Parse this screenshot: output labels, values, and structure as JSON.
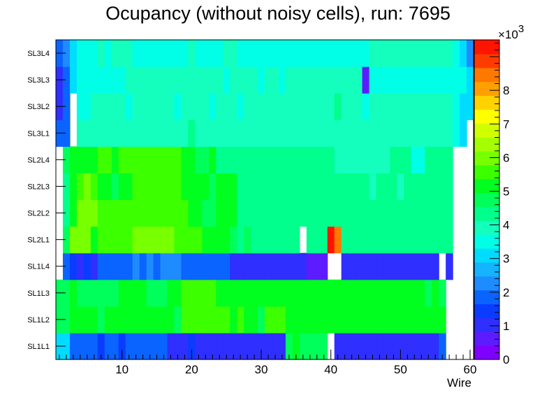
{
  "chart_data": {
    "type": "heatmap",
    "title": "Ocupancy (without noisy cells), run: 7695",
    "xlabel": "Wire",
    "ylabel": "",
    "x_range": [
      0.5,
      60.5
    ],
    "x_ticks": [
      10,
      20,
      30,
      40,
      50,
      60
    ],
    "layers": [
      "SL1L1",
      "SL1L2",
      "SL1L3",
      "SL1L4",
      "SL2L1",
      "SL2L2",
      "SL2L3",
      "SL2L4",
      "SL3L1",
      "SL3L2",
      "SL3L3",
      "SL3L4"
    ],
    "z_range": [
      0,
      9.5
    ],
    "z_multiplier_base": "×10",
    "z_multiplier_exp": "3",
    "z_ticks": [
      "0",
      "1",
      "2",
      "3",
      "4",
      "5",
      "6",
      "7",
      "8"
    ],
    "palette": [
      "#7f00ff",
      "#5c1cff",
      "#2f2fff",
      "#0a3cff",
      "#0a64ff",
      "#1e8cff",
      "#14b4ff",
      "#00dcff",
      "#00ffe6",
      "#14ffbe",
      "#00ff8c",
      "#00ff5a",
      "#00ff1e",
      "#3cff00",
      "#78ff00",
      "#a5ff00",
      "#d2ff00",
      "#ffff00",
      "#ffd200",
      "#ffa000",
      "#ff7800",
      "#ff3c00",
      "#ff1400"
    ],
    "values": [
      [
        2.9,
        2.9,
        1.9,
        1.7,
        1.7,
        1.9,
        1.3,
        1.7,
        1.9,
        1.6,
        1.7,
        1.7,
        1.7,
        1.7,
        1.7,
        1.7,
        1.1,
        1.1,
        1.1,
        1.3,
        1.1,
        1.1,
        1.1,
        1.1,
        1.1,
        0.9,
        1.1,
        1.1,
        1.1,
        1.1,
        0.9,
        0.9,
        0.9,
        4.9,
        5.2,
        4.9,
        4.9,
        4.9,
        4.9,
        null,
        0.9,
        0.9,
        0.9,
        0.9,
        0.9,
        0.9,
        0.9,
        0.9,
        0.9,
        0.9,
        0.9,
        0.9,
        0.9,
        0.9,
        0.9,
        1.7,
        null,
        null,
        null,
        null
      ],
      [
        4.9,
        4.9,
        5.3,
        5.3,
        5.3,
        5.3,
        4.9,
        5.3,
        5.3,
        5.3,
        5.3,
        5.3,
        5.3,
        5.3,
        5.3,
        5.3,
        5.3,
        4.9,
        5.6,
        5.6,
        5.6,
        5.6,
        5.6,
        5.6,
        5.6,
        5.3,
        5.6,
        5.3,
        5.3,
        4.9,
        5.6,
        5.6,
        5.6,
        5.3,
        5.3,
        5.3,
        5.3,
        5.3,
        5.3,
        5.3,
        5.3,
        5.3,
        5.3,
        5.3,
        5.3,
        5.3,
        5.3,
        5.3,
        5.3,
        5.3,
        5.3,
        5.3,
        5.3,
        5.3,
        5.3,
        5.3,
        null,
        null,
        null,
        null
      ],
      [
        4.9,
        4.9,
        5.3,
        4.9,
        4.9,
        4.9,
        4.9,
        4.9,
        4.9,
        5.3,
        5.3,
        5.3,
        5.3,
        4.9,
        4.9,
        4.9,
        5.3,
        5.3,
        5.6,
        5.6,
        5.6,
        5.6,
        5.6,
        5.3,
        5.3,
        5.3,
        5.3,
        5.3,
        5.3,
        5.3,
        5.3,
        5.3,
        5.3,
        5.3,
        5.3,
        5.3,
        5.3,
        5.3,
        5.3,
        5.3,
        5.3,
        5.3,
        5.3,
        5.3,
        5.3,
        5.3,
        5.3,
        5.3,
        5.3,
        5.3,
        5.3,
        5.3,
        5.3,
        4.9,
        5.3,
        4.9,
        null,
        null,
        null,
        null
      ],
      [
        null,
        1.7,
        1.3,
        0.9,
        1.3,
        0.9,
        1.7,
        1.7,
        1.7,
        1.7,
        1.7,
        2.4,
        1.9,
        2.4,
        1.9,
        2.1,
        2.1,
        2.1,
        1.7,
        1.7,
        1.7,
        1.7,
        1.7,
        1.7,
        1.7,
        1.1,
        1.1,
        1.1,
        1.1,
        1.1,
        1.1,
        1.1,
        1.1,
        0.9,
        1.1,
        1.1,
        0.5,
        0.5,
        0.5,
        null,
        null,
        0.9,
        0.9,
        0.9,
        0.9,
        0.9,
        0.9,
        0.9,
        0.9,
        0.9,
        0.9,
        0.9,
        0.9,
        0.9,
        0.9,
        null,
        0.9,
        null,
        null,
        null
      ],
      [
        null,
        4.9,
        5.9,
        5.9,
        5.9,
        5.3,
        5.6,
        5.6,
        5.6,
        5.6,
        5.6,
        5.9,
        5.9,
        5.9,
        5.9,
        5.9,
        5.9,
        5.6,
        5.6,
        5.6,
        5.6,
        5.3,
        5.3,
        5.3,
        5.3,
        4.9,
        4.5,
        4.9,
        4.5,
        4.5,
        4.2,
        4.2,
        4.5,
        4.2,
        4.2,
        null,
        4.2,
        4.2,
        4.2,
        9.2,
        8.4,
        4.5,
        4.5,
        4.5,
        4.2,
        4.2,
        4.2,
        4.2,
        4.2,
        4.2,
        4.2,
        4.2,
        4.2,
        4.2,
        4.2,
        4.2,
        4.2,
        null,
        null,
        null
      ],
      [
        null,
        4.5,
        5.3,
        5.9,
        5.9,
        5.9,
        5.6,
        5.6,
        5.6,
        5.6,
        5.6,
        5.6,
        5.6,
        5.6,
        5.6,
        5.6,
        5.6,
        5.6,
        5.6,
        5.3,
        5.3,
        4.9,
        4.9,
        5.3,
        5.3,
        5.3,
        4.5,
        4.5,
        4.5,
        4.5,
        4.5,
        4.5,
        4.2,
        4.5,
        4.5,
        4.5,
        4.5,
        4.5,
        4.5,
        4.5,
        4.2,
        4.2,
        4.2,
        4.2,
        4.2,
        4.2,
        4.2,
        4.2,
        4.2,
        4.2,
        4.2,
        4.2,
        4.2,
        4.2,
        4.5,
        4.2,
        4.5,
        null,
        null,
        null
      ],
      [
        null,
        4.5,
        5.3,
        5.6,
        5.9,
        5.6,
        5.3,
        5.3,
        4.9,
        5.3,
        5.3,
        5.6,
        5.6,
        5.6,
        5.6,
        5.6,
        5.6,
        5.6,
        5.3,
        5.3,
        5.3,
        5.3,
        4.9,
        5.3,
        5.3,
        5.3,
        4.5,
        4.5,
        4.5,
        4.5,
        4.5,
        4.5,
        4.5,
        4.5,
        4.5,
        4.5,
        4.5,
        4.5,
        4.5,
        4.5,
        4.2,
        4.2,
        4.2,
        4.2,
        4.5,
        3.9,
        4.2,
        4.5,
        4.5,
        3.9,
        4.2,
        4.2,
        4.5,
        4.2,
        4.5,
        4.5,
        4.5,
        null,
        null,
        null
      ],
      [
        null,
        4.9,
        5.3,
        5.3,
        5.3,
        5.3,
        5.6,
        5.6,
        5.3,
        5.6,
        5.6,
        5.6,
        5.6,
        5.6,
        5.6,
        5.6,
        5.6,
        5.6,
        5.3,
        5.3,
        4.9,
        4.9,
        5.3,
        4.5,
        4.2,
        4.5,
        4.2,
        4.2,
        4.2,
        4.2,
        4.2,
        4.2,
        4.2,
        4.2,
        4.2,
        4.2,
        4.2,
        4.5,
        4.2,
        4.2,
        3.9,
        3.9,
        3.9,
        3.9,
        3.9,
        3.9,
        3.9,
        3.9,
        4.2,
        4.2,
        4.2,
        3.6,
        3.6,
        4.2,
        4.2,
        4.2,
        4.5,
        null,
        null,
        null
      ],
      [
        1.7,
        1.9,
        null,
        3.9,
        3.9,
        3.9,
        3.9,
        3.9,
        3.9,
        3.9,
        3.9,
        3.9,
        3.9,
        3.9,
        3.9,
        3.9,
        3.9,
        3.9,
        3.9,
        4.2,
        3.9,
        3.9,
        3.9,
        3.9,
        3.9,
        3.9,
        3.9,
        3.9,
        3.9,
        3.9,
        3.9,
        3.9,
        3.9,
        3.9,
        3.9,
        3.9,
        3.9,
        3.9,
        3.9,
        3.9,
        3.9,
        3.9,
        3.9,
        3.9,
        3.9,
        3.9,
        3.9,
        3.9,
        3.9,
        3.9,
        3.9,
        3.9,
        3.9,
        3.9,
        3.9,
        3.9,
        3.9,
        3.6,
        2.9,
        null
      ],
      [
        1.1,
        1.7,
        null,
        3.6,
        3.6,
        3.9,
        3.9,
        3.9,
        3.9,
        3.9,
        3.6,
        3.9,
        3.9,
        3.9,
        3.9,
        3.9,
        3.9,
        3.6,
        3.9,
        3.9,
        3.9,
        3.9,
        3.6,
        3.9,
        3.9,
        3.9,
        3.6,
        3.9,
        3.9,
        3.9,
        3.9,
        3.9,
        3.9,
        3.9,
        3.9,
        3.9,
        3.9,
        3.9,
        3.9,
        3.9,
        4.5,
        3.9,
        3.9,
        3.9,
        3.6,
        3.9,
        3.9,
        3.9,
        3.9,
        3.9,
        3.9,
        3.9,
        3.9,
        3.9,
        3.9,
        3.9,
        3.9,
        3.6,
        2.9,
        2.9
      ],
      [
        1.1,
        1.9,
        2.9,
        3.6,
        3.6,
        3.6,
        3.6,
        3.6,
        3.6,
        3.6,
        3.9,
        3.9,
        3.9,
        3.9,
        3.9,
        3.9,
        3.9,
        3.9,
        3.9,
        3.9,
        3.9,
        3.9,
        3.9,
        3.9,
        3.6,
        3.9,
        3.9,
        3.9,
        3.9,
        3.6,
        3.9,
        3.9,
        3.6,
        3.9,
        3.9,
        3.9,
        3.9,
        3.9,
        3.9,
        3.9,
        3.9,
        3.9,
        3.9,
        3.9,
        0.5,
        3.6,
        3.6,
        3.6,
        3.6,
        3.6,
        3.6,
        3.6,
        3.6,
        3.6,
        3.6,
        3.6,
        3.6,
        3.6,
        3.6,
        2.9
      ],
      [
        1.7,
        2.1,
        3.1,
        3.6,
        3.6,
        3.6,
        3.9,
        3.6,
        3.9,
        3.9,
        3.9,
        3.6,
        3.6,
        3.6,
        3.6,
        3.6,
        3.6,
        3.6,
        3.6,
        3.9,
        3.6,
        3.6,
        3.6,
        3.6,
        3.9,
        3.9,
        3.6,
        3.6,
        3.6,
        3.6,
        3.6,
        3.6,
        3.6,
        3.6,
        3.6,
        3.6,
        3.6,
        3.6,
        3.6,
        3.6,
        3.6,
        3.6,
        3.6,
        3.6,
        3.6,
        3.9,
        3.9,
        3.9,
        3.9,
        3.9,
        3.9,
        3.9,
        3.9,
        3.9,
        3.9,
        3.9,
        3.9,
        3.6,
        2.9,
        2.4
      ]
    ]
  }
}
